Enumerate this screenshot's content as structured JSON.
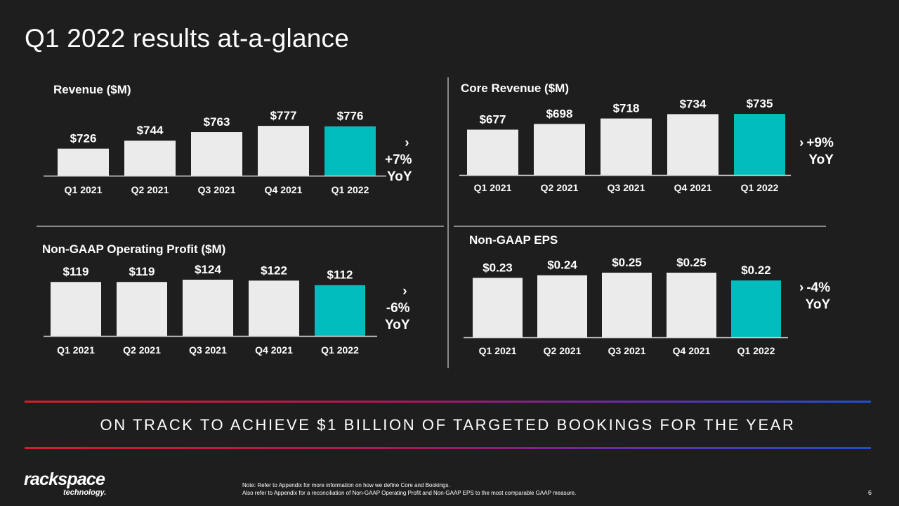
{
  "page_title": "Q1 2022 results at-a-glance",
  "banner": "ON TRACK TO ACHIEVE $1 BILLION OF TARGETED BOOKINGS FOR THE YEAR",
  "logo": {
    "main": "rackspace",
    "sub": "technology."
  },
  "note": {
    "line1": "Note: Refer to Appendix for more information on how we define Core and Bookings.",
    "line2": "Also refer to Appendix for a reconciliation of Non-GAAP Operating Profit and Non-GAAP EPS to the most comparable GAAP measure."
  },
  "page_number": "6",
  "colors": {
    "bar": "#ebebeb",
    "highlight": "#00bcbc",
    "background": "#1e1e1e"
  },
  "chart_data": [
    {
      "type": "bar",
      "title": "Revenue ($M)",
      "categories": [
        "Q1 2021",
        "Q2 2021",
        "Q3 2021",
        "Q4 2021",
        "Q1 2022"
      ],
      "values": [
        726,
        744,
        763,
        777,
        776
      ],
      "labels": [
        "$726",
        "$744",
        "$763",
        "$777",
        "$776"
      ],
      "highlight_index": 4,
      "ylim": [
        705,
        785
      ],
      "yoy": {
        "change": "+7%",
        "unit": "YoY"
      }
    },
    {
      "type": "bar",
      "title": "Core Revenue ($M)",
      "categories": [
        "Q1 2021",
        "Q2 2021",
        "Q3 2021",
        "Q4 2021",
        "Q1 2022"
      ],
      "values": [
        677,
        698,
        718,
        734,
        735
      ],
      "labels": [
        "$677",
        "$698",
        "$718",
        "$734",
        "$735"
      ],
      "highlight_index": 4,
      "ylim": [
        637,
        735
      ],
      "yoy": {
        "change": "+9%",
        "unit": "YoY"
      }
    },
    {
      "type": "bar",
      "title": "Non-GAAP Operating Profit ($M)",
      "categories": [
        "Q1 2021",
        "Q2 2021",
        "Q3 2021",
        "Q4 2021",
        "Q1 2022"
      ],
      "values": [
        119,
        119,
        124,
        122,
        112
      ],
      "labels": [
        "$119",
        "$119",
        "$124",
        "$122",
        "$112"
      ],
      "highlight_index": 4,
      "ylim": [
        0,
        124
      ],
      "yoy": {
        "change": "-6%",
        "unit": "YoY"
      }
    },
    {
      "type": "bar",
      "title": "Non-GAAP EPS",
      "categories": [
        "Q1 2021",
        "Q2 2021",
        "Q3 2021",
        "Q4 2021",
        "Q1 2022"
      ],
      "values": [
        0.23,
        0.24,
        0.25,
        0.25,
        0.22
      ],
      "labels": [
        "$0.23",
        "$0.24",
        "$0.25",
        "$0.25",
        "$0.22"
      ],
      "highlight_index": 4,
      "ylim": [
        0,
        0.25
      ],
      "yoy": {
        "change": "-4%",
        "unit": "YoY"
      }
    }
  ]
}
